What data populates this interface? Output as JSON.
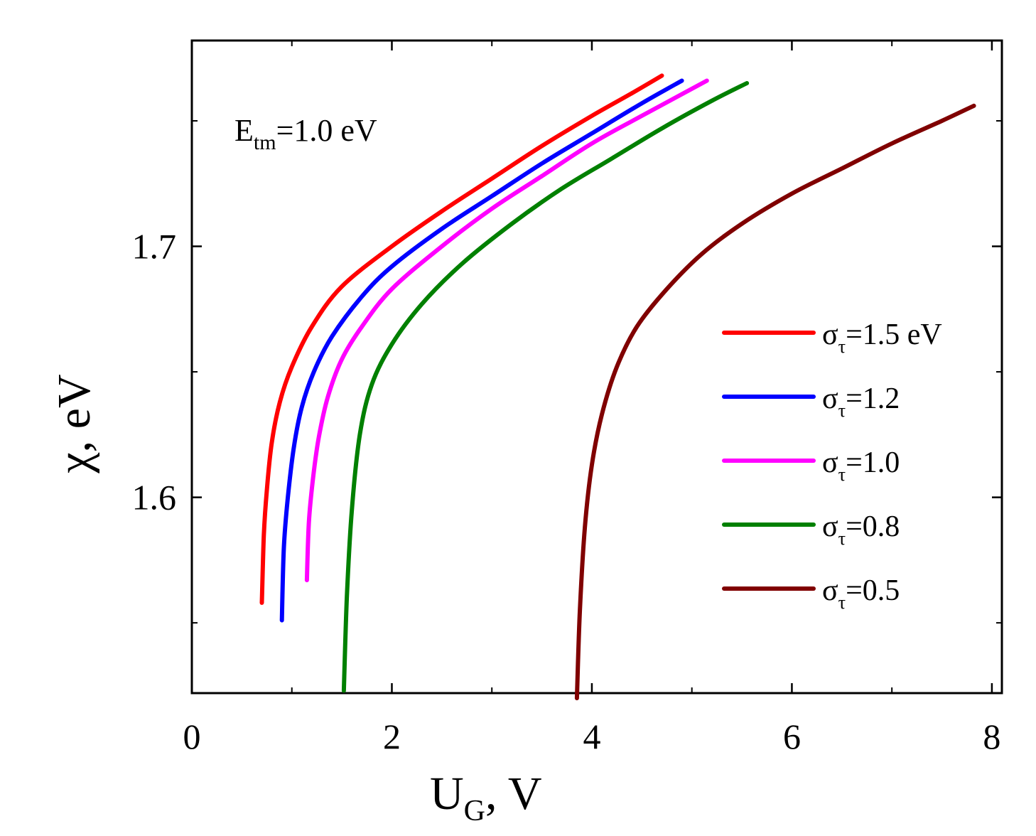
{
  "chart_data": {
    "type": "line",
    "xlabel": {
      "main": "U",
      "sub": "G",
      "unit": ", V"
    },
    "ylabel": "χ, eV",
    "xlim": [
      0,
      8.1
    ],
    "ylim": [
      1.522,
      1.782
    ],
    "xticks": [
      0,
      2,
      4,
      6,
      8
    ],
    "xtick_labels": [
      "0",
      "2",
      "4",
      "6",
      "8"
    ],
    "xminor": [
      1,
      3,
      5,
      7
    ],
    "yticks": [
      1.6,
      1.7
    ],
    "ytick_labels": [
      "1.6",
      "1.7"
    ],
    "yminor": [
      1.55,
      1.65,
      1.75
    ],
    "grid": false,
    "legend_position": "center-right",
    "annotation": {
      "main": "E",
      "sub": "tm",
      "rest": "=1.0 eV"
    },
    "series": [
      {
        "name": "σ_τ=1.5 eV",
        "label_main": "σ",
        "label_sub": "τ",
        "label_rest": "=1.5 eV",
        "color": "#ff0000",
        "x": [
          0.7,
          0.72,
          0.75,
          0.8,
          0.88,
          1.0,
          1.2,
          1.5,
          2.0,
          2.5,
          3.0,
          3.5,
          4.0,
          4.4,
          4.7
        ],
        "y": [
          1.558,
          1.585,
          1.603,
          1.622,
          1.638,
          1.652,
          1.668,
          1.684,
          1.7,
          1.714,
          1.727,
          1.74,
          1.752,
          1.761,
          1.768
        ]
      },
      {
        "name": "σ_τ=1.2",
        "label_main": "σ",
        "label_sub": "τ",
        "label_rest": "=1.2",
        "color": "#0000ff",
        "x": [
          0.9,
          0.92,
          0.96,
          1.02,
          1.1,
          1.22,
          1.4,
          1.7,
          2.0,
          2.5,
          3.0,
          3.5,
          4.0,
          4.5,
          4.9
        ],
        "y": [
          1.551,
          1.58,
          1.6,
          1.62,
          1.636,
          1.65,
          1.664,
          1.68,
          1.692,
          1.707,
          1.72,
          1.733,
          1.745,
          1.757,
          1.766
        ]
      },
      {
        "name": "σ_τ=1.0",
        "label_main": "σ",
        "label_sub": "τ",
        "label_rest": "=1.0",
        "color": "#ff00ff",
        "x": [
          1.15,
          1.17,
          1.21,
          1.27,
          1.36,
          1.5,
          1.7,
          2.0,
          2.5,
          3.0,
          3.5,
          4.0,
          4.5,
          5.15
        ],
        "y": [
          1.567,
          1.59,
          1.607,
          1.624,
          1.64,
          1.655,
          1.668,
          1.683,
          1.7,
          1.715,
          1.728,
          1.741,
          1.752,
          1.766
        ]
      },
      {
        "name": "σ_τ=0.8",
        "label_main": "σ",
        "label_sub": "τ",
        "label_rest": "=0.8",
        "color": "#008000",
        "x": [
          1.52,
          1.55,
          1.6,
          1.68,
          1.8,
          2.0,
          2.3,
          2.7,
          3.2,
          3.7,
          4.2,
          4.7,
          5.2,
          5.55
        ],
        "y": [
          1.523,
          1.56,
          1.595,
          1.625,
          1.645,
          1.661,
          1.677,
          1.693,
          1.709,
          1.723,
          1.735,
          1.747,
          1.758,
          1.765
        ]
      },
      {
        "name": "σ_τ=0.5",
        "label_main": "σ",
        "label_sub": "τ",
        "label_rest": "=0.5",
        "color": "#800000",
        "x": [
          3.85,
          3.88,
          3.93,
          4.0,
          4.1,
          4.25,
          4.45,
          4.75,
          5.1,
          5.5,
          6.0,
          6.5,
          7.0,
          7.5,
          7.82
        ],
        "y": [
          1.52,
          1.555,
          1.588,
          1.613,
          1.633,
          1.652,
          1.668,
          1.683,
          1.697,
          1.709,
          1.721,
          1.731,
          1.741,
          1.75,
          1.756
        ]
      }
    ]
  }
}
